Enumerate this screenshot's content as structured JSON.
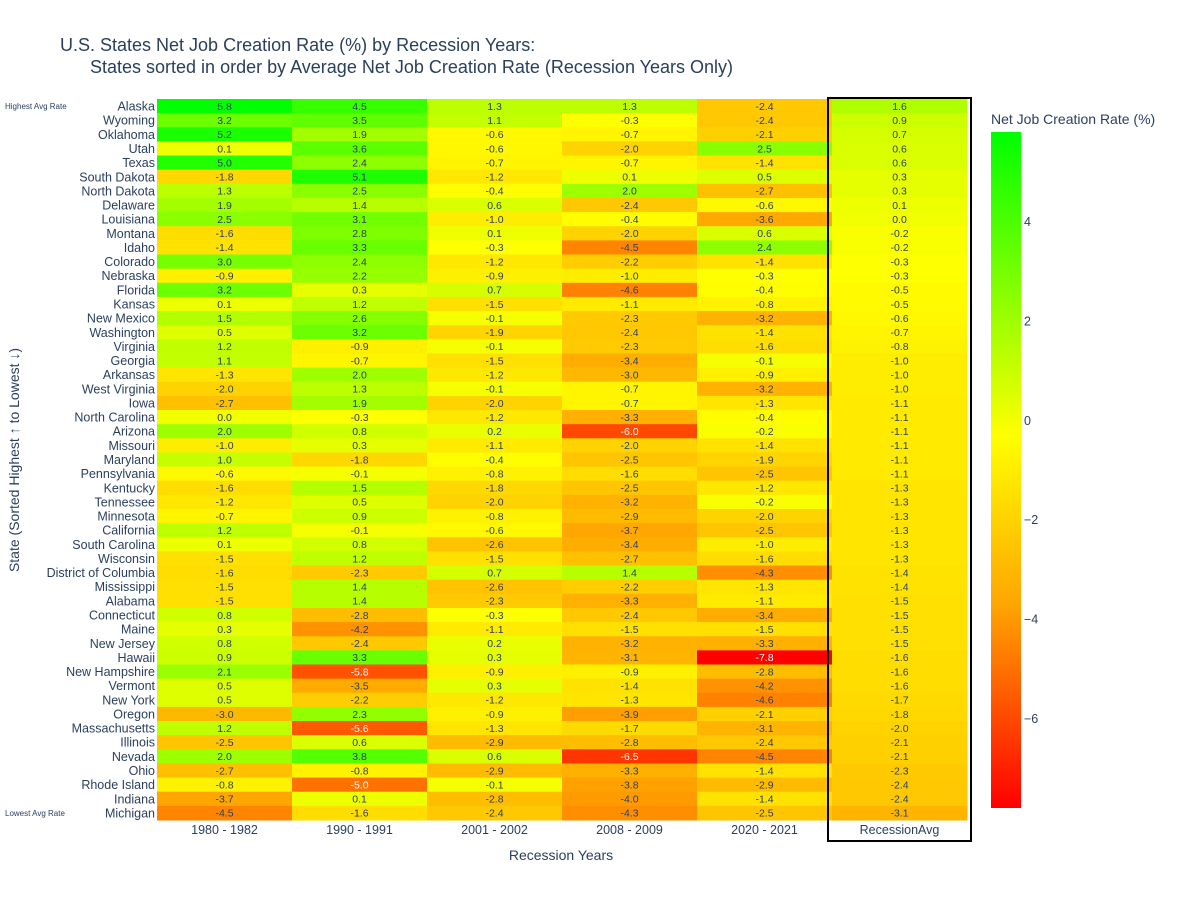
{
  "chart_data": {
    "type": "heatmap",
    "title_line1": "U.S. States Net Job Creation Rate (%) by Recession Years:",
    "title_line2": "States sorted in order by Average Net Job Creation Rate (Recession Years Only)",
    "xlabel": "Recession Years",
    "ylabel": "State (Sorted Highest ↑ to Lowest ↓)",
    "colorbar_title": "Net Job Creation Rate (%)",
    "colorbar_range": [
      -7.8,
      5.8
    ],
    "colorbar_ticks": [
      4,
      2,
      0,
      -2,
      -4,
      -6
    ],
    "colors": {
      "low": "#ff0000",
      "mid_low": "#ffa500",
      "mid": "#ffff00",
      "high": "#00ff00"
    },
    "annotation_top": "Highest Avg Rate",
    "annotation_bottom": "Lowest Avg Rate",
    "highlight_column": "RecessionAvg",
    "columns": [
      "1980 - 1982",
      "1990 - 1991",
      "2001 - 2002",
      "2008 - 2009",
      "2020 - 2021",
      "RecessionAvg"
    ],
    "rows": [
      {
        "state": "Alaska",
        "values": [
          5.8,
          4.5,
          1.3,
          1.3,
          -2.4,
          1.6
        ]
      },
      {
        "state": "Wyoming",
        "values": [
          3.2,
          3.5,
          1.1,
          -0.3,
          -2.4,
          0.9
        ]
      },
      {
        "state": "Oklahoma",
        "values": [
          5.2,
          1.9,
          -0.6,
          -0.7,
          -2.1,
          0.7
        ]
      },
      {
        "state": "Utah",
        "values": [
          0.1,
          3.6,
          -0.6,
          -2.0,
          2.5,
          0.6
        ]
      },
      {
        "state": "Texas",
        "values": [
          5.0,
          2.4,
          -0.7,
          -0.7,
          -1.4,
          0.6
        ]
      },
      {
        "state": "South Dakota",
        "values": [
          -1.8,
          5.1,
          -1.2,
          0.1,
          0.5,
          0.3
        ]
      },
      {
        "state": "North Dakota",
        "values": [
          1.3,
          2.5,
          -0.4,
          2.0,
          -2.7,
          0.3
        ]
      },
      {
        "state": "Delaware",
        "values": [
          1.9,
          1.4,
          0.6,
          -2.4,
          -0.6,
          0.1
        ]
      },
      {
        "state": "Louisiana",
        "values": [
          2.5,
          3.1,
          -1.0,
          -0.4,
          -3.6,
          0.0
        ]
      },
      {
        "state": "Montana",
        "values": [
          -1.6,
          2.8,
          0.1,
          -2.0,
          0.6,
          -0.2
        ]
      },
      {
        "state": "Idaho",
        "values": [
          -1.4,
          3.3,
          -0.3,
          -4.5,
          2.4,
          -0.2
        ]
      },
      {
        "state": "Colorado",
        "values": [
          3.0,
          2.4,
          -1.2,
          -2.2,
          -1.4,
          -0.3
        ]
      },
      {
        "state": "Nebraska",
        "values": [
          -0.9,
          2.2,
          -0.9,
          -1.0,
          -0.3,
          -0.3
        ]
      },
      {
        "state": "Florida",
        "values": [
          3.2,
          0.3,
          0.7,
          -4.6,
          -0.4,
          -0.5
        ]
      },
      {
        "state": "Kansas",
        "values": [
          0.1,
          1.2,
          -1.5,
          -1.1,
          -0.8,
          -0.5
        ]
      },
      {
        "state": "New Mexico",
        "values": [
          1.5,
          2.6,
          -0.1,
          -2.3,
          -3.2,
          -0.6
        ]
      },
      {
        "state": "Washington",
        "values": [
          0.5,
          3.2,
          -1.9,
          -2.4,
          -1.4,
          -0.7
        ]
      },
      {
        "state": "Virginia",
        "values": [
          1.2,
          -0.9,
          -0.1,
          -2.3,
          -1.6,
          -0.8
        ]
      },
      {
        "state": "Georgia",
        "values": [
          1.1,
          -0.7,
          -1.5,
          -3.4,
          -0.1,
          -1.0
        ]
      },
      {
        "state": "Arkansas",
        "values": [
          -1.3,
          2.0,
          -1.2,
          -3.0,
          -0.9,
          -1.0
        ]
      },
      {
        "state": "West Virginia",
        "values": [
          -2.0,
          1.3,
          -0.1,
          -0.7,
          -3.2,
          -1.0
        ]
      },
      {
        "state": "Iowa",
        "values": [
          -2.7,
          1.9,
          -2.0,
          -0.7,
          -1.3,
          -1.1
        ]
      },
      {
        "state": "North Carolina",
        "values": [
          0.0,
          -0.3,
          -1.2,
          -3.3,
          -0.4,
          -1.1
        ]
      },
      {
        "state": "Arizona",
        "values": [
          2.0,
          0.8,
          0.2,
          -6.0,
          -0.2,
          -1.1
        ]
      },
      {
        "state": "Missouri",
        "values": [
          -1.0,
          0.3,
          -1.1,
          -2.0,
          -1.4,
          -1.1
        ]
      },
      {
        "state": "Maryland",
        "values": [
          1.0,
          -1.8,
          -0.4,
          -2.5,
          -1.9,
          -1.1
        ]
      },
      {
        "state": "Pennsylvania",
        "values": [
          -0.6,
          -0.1,
          -0.8,
          -1.6,
          -2.5,
          -1.1
        ]
      },
      {
        "state": "Kentucky",
        "values": [
          -1.6,
          1.5,
          -1.8,
          -2.5,
          -1.2,
          -1.3
        ]
      },
      {
        "state": "Tennessee",
        "values": [
          -1.2,
          0.5,
          -2.0,
          -3.2,
          -0.2,
          -1.3
        ]
      },
      {
        "state": "Minnesota",
        "values": [
          -0.7,
          0.9,
          -0.8,
          -2.9,
          -2.0,
          -1.3
        ]
      },
      {
        "state": "California",
        "values": [
          1.2,
          -0.1,
          -0.6,
          -3.7,
          -2.5,
          -1.3
        ]
      },
      {
        "state": "South Carolina",
        "values": [
          0.1,
          0.8,
          -2.6,
          -3.4,
          -1.0,
          -1.3
        ]
      },
      {
        "state": "Wisconsin",
        "values": [
          -1.5,
          1.2,
          -1.5,
          -2.7,
          -1.6,
          -1.3
        ]
      },
      {
        "state": "District of Columbia",
        "values": [
          -1.6,
          -2.3,
          0.7,
          1.4,
          -4.3,
          -1.4
        ]
      },
      {
        "state": "Mississippi",
        "values": [
          -1.5,
          1.4,
          -2.6,
          -2.2,
          -1.3,
          -1.4
        ]
      },
      {
        "state": "Alabama",
        "values": [
          -1.5,
          1.4,
          -2.3,
          -3.3,
          -1.1,
          -1.5
        ]
      },
      {
        "state": "Connecticut",
        "values": [
          0.8,
          -2.8,
          -0.3,
          -2.4,
          -3.4,
          -1.5
        ]
      },
      {
        "state": "Maine",
        "values": [
          0.3,
          -4.2,
          -1.1,
          -1.5,
          -1.5,
          -1.5
        ]
      },
      {
        "state": "New Jersey",
        "values": [
          0.8,
          -2.4,
          0.2,
          -3.2,
          -3.3,
          -1.5
        ]
      },
      {
        "state": "Hawaii",
        "values": [
          0.9,
          3.3,
          0.3,
          -3.1,
          -7.8,
          -1.6
        ]
      },
      {
        "state": "New Hampshire",
        "values": [
          2.1,
          -5.8,
          -0.9,
          -0.9,
          -2.8,
          -1.6
        ]
      },
      {
        "state": "Vermont",
        "values": [
          0.5,
          -3.5,
          0.3,
          -1.4,
          -4.2,
          -1.6
        ]
      },
      {
        "state": "New York",
        "values": [
          0.5,
          -2.2,
          -1.2,
          -1.3,
          -4.6,
          -1.7
        ]
      },
      {
        "state": "Oregon",
        "values": [
          -3.0,
          2.3,
          -0.9,
          -3.9,
          -2.1,
          -1.8
        ]
      },
      {
        "state": "Massachusetts",
        "values": [
          1.2,
          -5.6,
          -1.3,
          -1.7,
          -3.1,
          -2.0
        ]
      },
      {
        "state": "Illinois",
        "values": [
          -2.5,
          0.6,
          -2.9,
          -2.8,
          -2.4,
          -2.1
        ]
      },
      {
        "state": "Nevada",
        "values": [
          2.0,
          3.8,
          0.6,
          -6.5,
          -4.5,
          -2.1
        ]
      },
      {
        "state": "Ohio",
        "values": [
          -2.7,
          -0.8,
          -2.9,
          -3.3,
          -1.4,
          -2.3
        ]
      },
      {
        "state": "Rhode Island",
        "values": [
          -0.8,
          -5.0,
          -0.1,
          -3.8,
          -2.9,
          -2.4
        ]
      },
      {
        "state": "Indiana",
        "values": [
          -3.7,
          0.1,
          -2.8,
          -4.0,
          -1.4,
          -2.4
        ]
      },
      {
        "state": "Michigan",
        "values": [
          -4.5,
          -1.6,
          -2.4,
          -4.3,
          -2.5,
          -3.1
        ]
      }
    ]
  }
}
